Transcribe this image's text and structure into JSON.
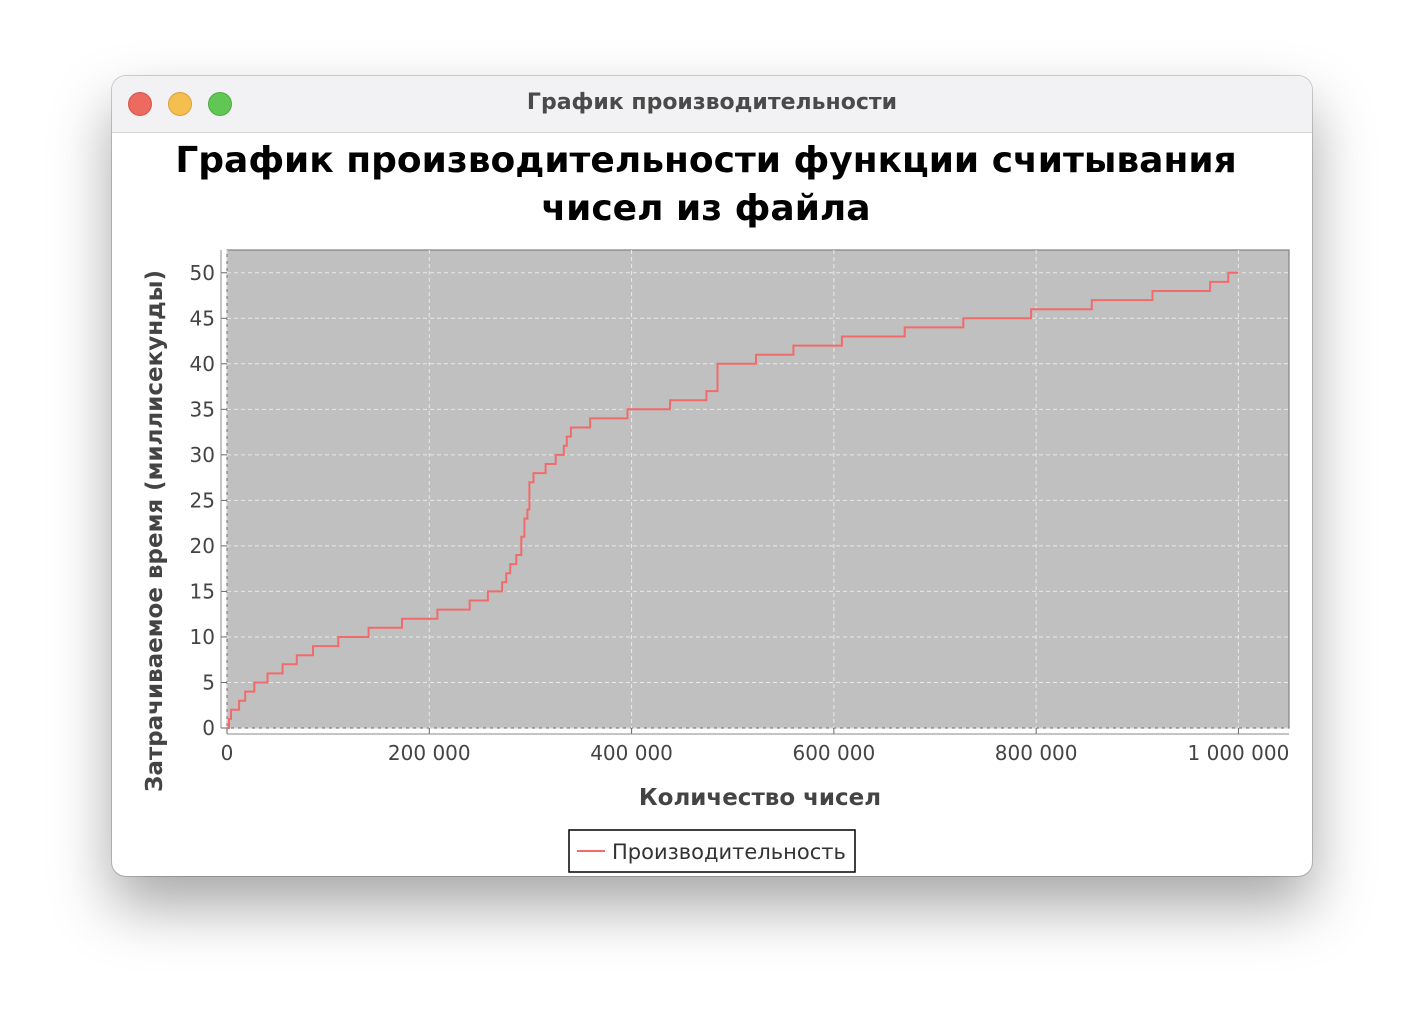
{
  "window": {
    "title": "График производительности"
  },
  "chart_data": {
    "type": "line",
    "title_lines": [
      "График производительности функции считывания",
      "чисел из файла"
    ],
    "xlabel": "Количество чисел",
    "ylabel": "Затрачиваемое время (миллисекунды)",
    "xlim": [
      0,
      1050000
    ],
    "ylim": [
      0,
      52.5
    ],
    "x_ticks": [
      0,
      200000,
      400000,
      600000,
      800000,
      1000000
    ],
    "x_tick_labels": [
      "0",
      "200 000",
      "400 000",
      "600 000",
      "800 000",
      "1 000 000"
    ],
    "y_ticks": [
      0,
      5,
      10,
      15,
      20,
      25,
      30,
      35,
      40,
      45,
      50
    ],
    "y_tick_labels": [
      "0",
      "5",
      "10",
      "15",
      "20",
      "25",
      "30",
      "35",
      "40",
      "45",
      "50"
    ],
    "grid": true,
    "legend_position": "bottom-center",
    "colors": {
      "line": "#f26b6b",
      "plot_background": "#c0c0c0",
      "grid": "#e8e8e8"
    },
    "series": [
      {
        "name": "Производительность",
        "step": true,
        "points": [
          [
            0,
            0
          ],
          [
            2000,
            1
          ],
          [
            4000,
            2
          ],
          [
            12000,
            3
          ],
          [
            18000,
            4
          ],
          [
            27000,
            5
          ],
          [
            40000,
            6
          ],
          [
            55000,
            7
          ],
          [
            69000,
            8
          ],
          [
            85000,
            9
          ],
          [
            110000,
            10
          ],
          [
            140000,
            11
          ],
          [
            173000,
            12
          ],
          [
            208000,
            13
          ],
          [
            240000,
            14
          ],
          [
            258000,
            15
          ],
          [
            272000,
            16
          ],
          [
            276000,
            17
          ],
          [
            280000,
            18
          ],
          [
            286000,
            19
          ],
          [
            291000,
            21
          ],
          [
            294000,
            23
          ],
          [
            297000,
            24
          ],
          [
            299000,
            27
          ],
          [
            303000,
            28
          ],
          [
            315000,
            29
          ],
          [
            325000,
            30
          ],
          [
            333000,
            31
          ],
          [
            336000,
            32
          ],
          [
            340000,
            33
          ],
          [
            359000,
            34
          ],
          [
            396000,
            35
          ],
          [
            438000,
            36
          ],
          [
            474000,
            37
          ],
          [
            485000,
            40
          ],
          [
            523000,
            41
          ],
          [
            560000,
            42
          ],
          [
            608000,
            43
          ],
          [
            670000,
            44
          ],
          [
            728000,
            45
          ],
          [
            795000,
            46
          ],
          [
            855000,
            47
          ],
          [
            915000,
            48
          ],
          [
            972000,
            49
          ],
          [
            990000,
            50
          ],
          [
            1000000,
            50
          ]
        ]
      }
    ]
  }
}
